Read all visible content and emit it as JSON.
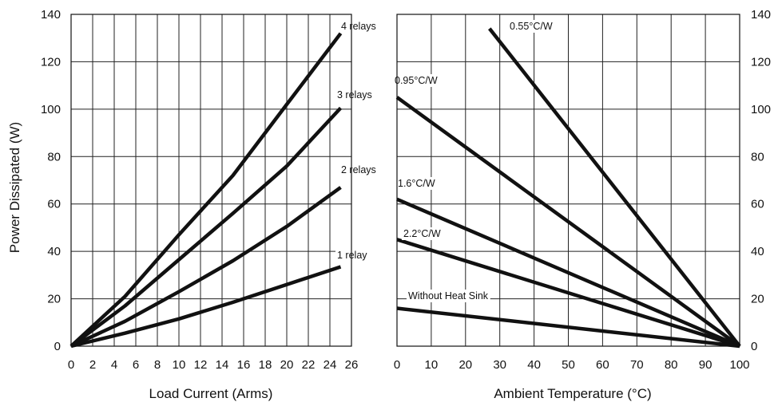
{
  "chart_data": [
    {
      "type": "line",
      "xlabel": "Load Current (Arms)",
      "ylabel": "Power Dissipated (W)",
      "xlim": [
        0,
        26
      ],
      "ylim": [
        0,
        140
      ],
      "xticks": [
        "0",
        "2",
        "4",
        "6",
        "8",
        "10",
        "12",
        "14",
        "16",
        "18",
        "20",
        "22",
        "24",
        "26"
      ],
      "yticks": [
        "0",
        "20",
        "40",
        "60",
        "80",
        "100",
        "120",
        "140"
      ],
      "grid": true,
      "series": [
        {
          "name": "1 relay",
          "x": [
            0,
            5,
            10,
            15,
            20,
            25
          ],
          "y": [
            0,
            5.5,
            11.5,
            18.5,
            26,
            33.5
          ]
        },
        {
          "name": "2 relays",
          "x": [
            0,
            5,
            10,
            15,
            20,
            25
          ],
          "y": [
            0,
            10.5,
            23,
            36,
            50.5,
            67
          ]
        },
        {
          "name": "3 relays",
          "x": [
            0,
            5,
            10,
            15,
            20,
            25
          ],
          "y": [
            0,
            17,
            36.5,
            56,
            76,
            100.5
          ]
        },
        {
          "name": "4 relays",
          "x": [
            0,
            5,
            10,
            15,
            20,
            25
          ],
          "y": [
            0,
            21,
            47,
            72,
            102,
            132
          ]
        }
      ]
    },
    {
      "type": "line",
      "xlabel": "Ambient Temperature (°C)",
      "ylabel": "",
      "xlim": [
        0,
        100
      ],
      "ylim": [
        0,
        140
      ],
      "xticks": [
        "0",
        "10",
        "20",
        "30",
        "40",
        "50",
        "60",
        "70",
        "80",
        "90",
        "100"
      ],
      "yticks": [
        "0",
        "20",
        "40",
        "60",
        "80",
        "100",
        "120",
        "140"
      ],
      "grid": true,
      "series": [
        {
          "name": "0.55°C/W",
          "x": [
            27,
            100
          ],
          "y": [
            134,
            0
          ]
        },
        {
          "name": "0.95°C/W",
          "x": [
            0,
            100
          ],
          "y": [
            105,
            0
          ]
        },
        {
          "name": "1.6°C/W",
          "x": [
            0,
            100
          ],
          "y": [
            62,
            0
          ]
        },
        {
          "name": "2.2°C/W",
          "x": [
            0,
            100
          ],
          "y": [
            45,
            0
          ]
        },
        {
          "name": "Without Heat Sink",
          "x": [
            0,
            100
          ],
          "y": [
            16,
            0
          ]
        }
      ]
    }
  ]
}
